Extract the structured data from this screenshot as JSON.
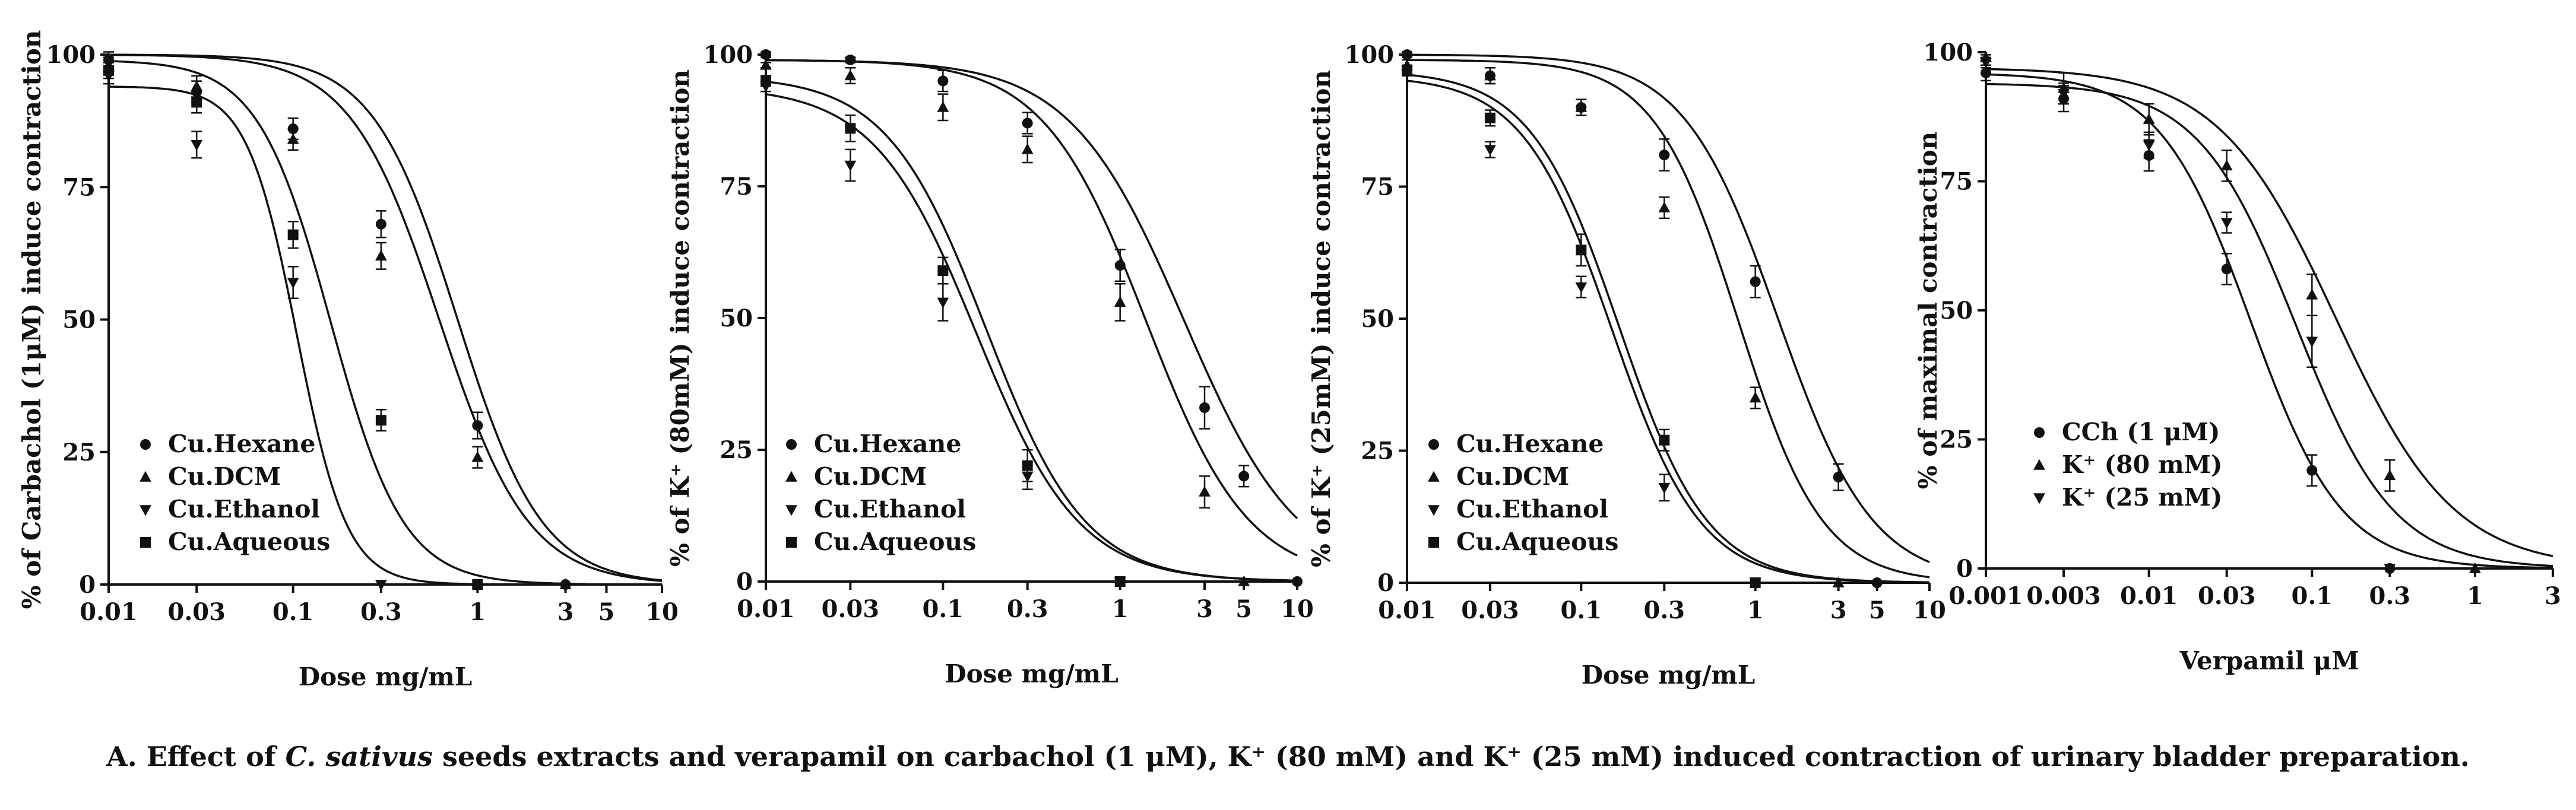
{
  "caption": {
    "prefix": "A. Effect of ",
    "italic": "C. sativus",
    "suffix": " seeds extracts and verapamil on carbachol (1 μM), K⁺ (80 mM) and K⁺ (25 mM) induced contraction of urinary bladder preparation."
  },
  "colors": {
    "ink": "#111111",
    "background": "#ffffff"
  },
  "chart_data": [
    {
      "type": "line",
      "title": "",
      "xlabel": "Dose mg/mL",
      "ylabel": "% of Carbachol (1μM) induce contraction",
      "xscale": "log",
      "xlim": [
        0.01,
        10
      ],
      "ylim": [
        0,
        100
      ],
      "xticks": [
        0.01,
        0.03,
        0.1,
        0.3,
        1,
        3,
        5,
        10
      ],
      "xtick_labels": [
        "0.01",
        "0.03",
        "0.1",
        "0.3",
        "1",
        "3",
        "5",
        "10"
      ],
      "yticks": [
        0,
        25,
        50,
        75,
        100
      ],
      "legend_position": "bottom-left",
      "series": [
        {
          "name": "Cu.Hexane",
          "marker": "circle",
          "ic50": 0.78,
          "hill": 1.9,
          "top": 100,
          "x": [
            0.01,
            0.03,
            0.1,
            0.3,
            1,
            3
          ],
          "y": [
            99,
            93,
            86,
            68,
            30,
            0
          ],
          "err": [
            1.5,
            2,
            2,
            2.5,
            2.5,
            0
          ]
        },
        {
          "name": "Cu.DCM",
          "marker": "triangle-up",
          "ic50": 0.62,
          "hill": 1.8,
          "top": 100,
          "x": [
            0.01,
            0.03,
            0.1,
            0.3,
            1,
            3
          ],
          "y": [
            98,
            94,
            84,
            62,
            24,
            0
          ],
          "err": [
            1.5,
            2,
            2,
            2.5,
            2,
            0
          ]
        },
        {
          "name": "Cu.Ethanol",
          "marker": "triangle-down",
          "ic50": 0.105,
          "hill": 3.2,
          "top": 94,
          "x": [
            0.01,
            0.03,
            0.1,
            0.3
          ],
          "y": [
            96,
            83,
            57,
            0
          ],
          "err": [
            1.5,
            2.5,
            3,
            0
          ]
        },
        {
          "name": "Cu.Aqueous",
          "marker": "square",
          "ic50": 0.16,
          "hill": 2.2,
          "top": 99,
          "x": [
            0.01,
            0.03,
            0.1,
            0.3,
            1
          ],
          "y": [
            97,
            91,
            66,
            31,
            0
          ],
          "err": [
            1.5,
            2,
            2.5,
            2,
            0
          ]
        }
      ]
    },
    {
      "type": "line",
      "title": "",
      "xlabel": "Dose mg/mL",
      "ylabel": "% of K⁺ (80mM) induce contraction",
      "xscale": "log",
      "xlim": [
        0.01,
        10
      ],
      "ylim": [
        0,
        100
      ],
      "xticks": [
        0.01,
        0.03,
        0.1,
        0.3,
        1,
        3,
        5,
        10
      ],
      "xtick_labels": [
        "0.01",
        "0.03",
        "0.1",
        "0.3",
        "1",
        "3",
        "5",
        "10"
      ],
      "yticks": [
        0,
        25,
        50,
        75,
        100
      ],
      "legend_position": "bottom-left",
      "series": [
        {
          "name": "Cu.Hexane",
          "marker": "circle",
          "ic50": 2.3,
          "hill": 1.35,
          "top": 99,
          "x": [
            0.01,
            0.03,
            0.1,
            0.3,
            1,
            3,
            5,
            10
          ],
          "y": [
            100,
            99,
            95,
            87,
            60,
            33,
            20,
            0
          ],
          "err": [
            0.5,
            0.5,
            2,
            2,
            3,
            4,
            2,
            0
          ]
        },
        {
          "name": "Cu.DCM",
          "marker": "triangle-up",
          "ic50": 1.4,
          "hill": 1.5,
          "top": 99,
          "x": [
            0.01,
            0.03,
            0.1,
            0.3,
            1,
            3,
            5
          ],
          "y": [
            98,
            96,
            90,
            82,
            53,
            17,
            0
          ],
          "err": [
            0.5,
            1.5,
            2.5,
            2.5,
            3.5,
            3,
            0
          ]
        },
        {
          "name": "Cu.Ethanol",
          "marker": "triangle-down",
          "ic50": 0.155,
          "hill": 1.5,
          "top": 94,
          "x": [
            0.01,
            0.03,
            0.1,
            0.3,
            1
          ],
          "y": [
            94,
            79,
            53,
            20,
            0
          ],
          "err": [
            1,
            3,
            3.5,
            2.5,
            0
          ]
        },
        {
          "name": "Cu.Aqueous",
          "marker": "square",
          "ic50": 0.175,
          "hill": 1.55,
          "top": 96,
          "x": [
            0.01,
            0.03,
            0.1,
            0.3,
            1
          ],
          "y": [
            95,
            86,
            59,
            22,
            0
          ],
          "err": [
            1,
            2.5,
            2.5,
            3,
            0
          ]
        }
      ]
    },
    {
      "type": "line",
      "title": "",
      "xlabel": "Dose mg/mL",
      "ylabel": "% of K⁺ (25mM) induce contraction",
      "xscale": "log",
      "xlim": [
        0.01,
        10
      ],
      "ylim": [
        0,
        100
      ],
      "xticks": [
        0.01,
        0.03,
        0.1,
        0.3,
        1,
        3,
        5,
        10
      ],
      "xtick_labels": [
        "0.01",
        "0.03",
        "0.1",
        "0.3",
        "1",
        "3",
        "5",
        "10"
      ],
      "yticks": [
        0,
        25,
        50,
        75,
        100
      ],
      "legend_position": "bottom-left",
      "series": [
        {
          "name": "Cu.Hexane",
          "marker": "circle",
          "ic50": 1.35,
          "hill": 1.6,
          "top": 100,
          "x": [
            0.01,
            0.03,
            0.1,
            0.3,
            1,
            3,
            5
          ],
          "y": [
            100,
            96,
            90,
            81,
            57,
            20,
            0
          ],
          "err": [
            0.5,
            1.5,
            1.5,
            3,
            3,
            2.5,
            0
          ]
        },
        {
          "name": "Cu.DCM",
          "marker": "triangle-up",
          "ic50": 0.8,
          "hill": 1.8,
          "top": 99,
          "x": [
            0.01,
            0.03,
            0.1,
            0.3,
            1,
            3
          ],
          "y": [
            98,
            96,
            90,
            71,
            35,
            0
          ],
          "err": [
            1,
            1.5,
            1.5,
            2,
            2,
            0
          ]
        },
        {
          "name": "Cu.Ethanol",
          "marker": "triangle-down",
          "ic50": 0.15,
          "hill": 1.7,
          "top": 96,
          "x": [
            0.01,
            0.03,
            0.1,
            0.3,
            1
          ],
          "y": [
            97,
            82,
            56,
            18,
            0
          ],
          "err": [
            1,
            1.5,
            2,
            2.5,
            0
          ]
        },
        {
          "name": "Cu.Aqueous",
          "marker": "square",
          "ic50": 0.165,
          "hill": 1.7,
          "top": 97,
          "x": [
            0.01,
            0.03,
            0.1,
            0.3,
            1
          ],
          "y": [
            97,
            88,
            63,
            27,
            0
          ],
          "err": [
            1,
            1.5,
            3,
            2,
            0
          ]
        }
      ]
    },
    {
      "type": "line",
      "title": "",
      "xlabel": "Verpamil μM",
      "ylabel": "% of maximal contraction",
      "xscale": "log",
      "xlim": [
        0.001,
        3
      ],
      "ylim": [
        0,
        100
      ],
      "xticks": [
        0.001,
        0.003,
        0.01,
        0.03,
        0.1,
        0.3,
        1,
        3
      ],
      "xtick_labels": [
        "0.001",
        "0.003",
        "0.01",
        "0.03",
        "0.1",
        "0.3",
        "1",
        "3"
      ],
      "yticks": [
        0,
        25,
        50,
        75,
        100
      ],
      "legend_position": "bottom-left",
      "series": [
        {
          "name": "CCh (1 μM)",
          "marker": "circle",
          "ic50": 0.042,
          "hill": 1.55,
          "top": 96,
          "x": [
            0.001,
            0.003,
            0.01,
            0.03,
            0.1,
            0.3
          ],
          "y": [
            96,
            91,
            80,
            58,
            19,
            0
          ],
          "err": [
            1.5,
            2.5,
            3,
            3,
            3,
            0
          ]
        },
        {
          "name": "K⁺ (80 mM)",
          "marker": "triangle-up",
          "ic50": 0.14,
          "hill": 1.2,
          "top": 97,
          "x": [
            0.001,
            0.003,
            0.01,
            0.03,
            0.1,
            0.3,
            1
          ],
          "y": [
            99,
            93,
            87,
            78,
            53,
            18,
            0
          ],
          "err": [
            0.5,
            3,
            3,
            3,
            4,
            3,
            0
          ]
        },
        {
          "name": "K⁺ (25 mM)",
          "marker": "triangle-down",
          "ic50": 0.08,
          "hill": 1.45,
          "top": 94,
          "x": [
            0.001,
            0.003,
            0.01,
            0.03,
            0.1,
            0.3
          ],
          "y": [
            98,
            92,
            82,
            67,
            44,
            0
          ],
          "err": [
            1,
            2,
            2.5,
            2,
            5,
            0
          ]
        }
      ]
    }
  ]
}
